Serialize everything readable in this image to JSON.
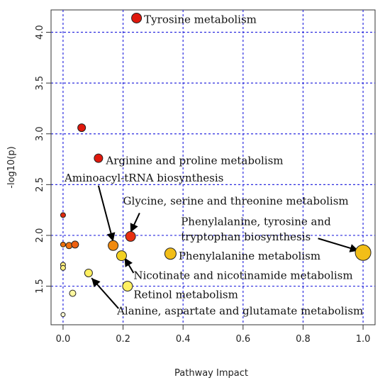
{
  "chart_data": {
    "type": "scatter",
    "xlabel": "Pathway Impact",
    "ylabel": "-log10(p)",
    "xlim": [
      -0.04,
      1.04
    ],
    "ylim": [
      1.12,
      4.22
    ],
    "x_ticks": [
      "0.0",
      "0.2",
      "0.4",
      "0.6",
      "0.8",
      "1.0"
    ],
    "y_ticks": [
      "1.5",
      "2.0",
      "2.5",
      "3.0",
      "3.5",
      "4.0"
    ],
    "grid": true,
    "grid_color": "#2b2bdf",
    "points": [
      {
        "x": 0.245,
        "y": 4.14,
        "r": 7,
        "color": "#e0180c",
        "label": "Tyrosine metabolism"
      },
      {
        "x": 0.062,
        "y": 3.06,
        "r": 5.5,
        "color": "#e0180c",
        "label": ""
      },
      {
        "x": 0.118,
        "y": 2.76,
        "r": 6,
        "color": "#e0180c",
        "label": "Arginine and proline metabolism"
      },
      {
        "x": 0.0,
        "y": 2.2,
        "r": 3.5,
        "color": "#e0280c",
        "label": ""
      },
      {
        "x": 0.0,
        "y": 1.91,
        "r": 3.5,
        "color": "#f0700c",
        "label": ""
      },
      {
        "x": 0.02,
        "y": 1.9,
        "r": 4.5,
        "color": "#f07010",
        "label": ""
      },
      {
        "x": 0.04,
        "y": 1.91,
        "r": 5,
        "color": "#ee6010",
        "label": ""
      },
      {
        "x": 0.167,
        "y": 1.9,
        "r": 7,
        "color": "#f08a10",
        "label": "Aminoacyl-tRNA biosynthesis"
      },
      {
        "x": 0.225,
        "y": 1.99,
        "r": 7,
        "color": "#e83010",
        "label": "Glycine, serine and threonine metabolism"
      },
      {
        "x": 0.195,
        "y": 1.8,
        "r": 7,
        "color": "#f2d020",
        "label": "Nicotinate and nicotinamide metabolism"
      },
      {
        "x": 0.358,
        "y": 1.82,
        "r": 8,
        "color": "#f2be18",
        "label": "Phenylalanine metabolism"
      },
      {
        "x": 1.0,
        "y": 1.83,
        "r": 11,
        "color": "#f2be18",
        "label": "Phenylalanine, tyrosine and tryptophan biosynthesis"
      },
      {
        "x": 0.0,
        "y": 1.71,
        "r": 3.5,
        "color": "#fff080",
        "label": ""
      },
      {
        "x": 0.0,
        "y": 1.68,
        "r": 3.5,
        "color": "#fff080",
        "label": ""
      },
      {
        "x": 0.085,
        "y": 1.63,
        "r": 5.5,
        "color": "#fff060",
        "label": "Alanine, aspartate and glutamate metabolism"
      },
      {
        "x": 0.215,
        "y": 1.5,
        "r": 7,
        "color": "#fff060",
        "label": "Retinol metabolism"
      },
      {
        "x": 0.032,
        "y": 1.43,
        "r": 4.5,
        "color": "#fff8a0",
        "label": ""
      },
      {
        "x": 0.0,
        "y": 1.22,
        "r": 3,
        "color": "#fffbd0",
        "label": ""
      }
    ],
    "annotations": [
      {
        "text": "Tyrosine metabolism",
        "tx": 0.27,
        "ty": 4.12
      },
      {
        "text": "Arginine and proline metabolism",
        "tx": 0.143,
        "ty": 2.73
      },
      {
        "text": "Aminoacyl-tRNA biosynthesis",
        "tx": 0.005,
        "ty": 2.56
      },
      {
        "text": "Glycine, serine and threonine metabolism",
        "tx": 0.2,
        "ty": 2.33
      },
      {
        "text": "Phenylalanine, tyrosine and",
        "tx": 0.393,
        "ty": 2.13
      },
      {
        "text": "tryptophan biosynthesis",
        "tx": 0.393,
        "ty": 1.98
      },
      {
        "text": "Phenylalanine metabolism",
        "tx": 0.385,
        "ty": 1.79
      },
      {
        "text": "Nicotinate and nicotinamide metabolism",
        "tx": 0.235,
        "ty": 1.6
      },
      {
        "text": "Retinol metabolism",
        "tx": 0.235,
        "ty": 1.41
      },
      {
        "text": "Alanine, aspartate and glutamate metabolism",
        "tx": 0.18,
        "ty": 1.25
      }
    ],
    "arrows": [
      {
        "x1": 0.118,
        "y1": 2.49,
        "x2": 0.167,
        "y2": 1.94
      },
      {
        "x1": 0.255,
        "y1": 2.22,
        "x2": 0.225,
        "y2": 2.03
      },
      {
        "x1": 0.85,
        "y1": 1.97,
        "x2": 0.985,
        "y2": 1.85
      },
      {
        "x1": 0.235,
        "y1": 1.63,
        "x2": 0.205,
        "y2": 1.78
      },
      {
        "x1": 0.185,
        "y1": 1.28,
        "x2": 0.095,
        "y2": 1.58
      }
    ]
  }
}
